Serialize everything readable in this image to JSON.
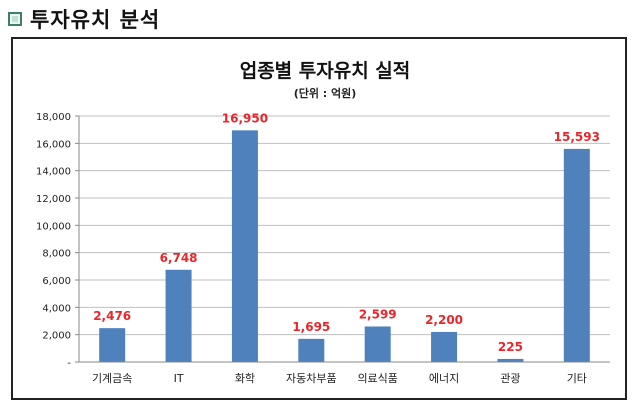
{
  "page_heading": "투자유치 분석",
  "chart_data": {
    "type": "bar",
    "title": "업종별 투자유치 실적",
    "subtitle": "(단위 : 억원)",
    "categories": [
      "기계금속",
      "IT",
      "화학",
      "자동차부품",
      "의료식품",
      "에너지",
      "관광",
      "기타"
    ],
    "values": [
      2476,
      6748,
      16950,
      1695,
      2599,
      2200,
      225,
      15593
    ],
    "value_labels": [
      "2,476",
      "6,748",
      "16,950",
      "1,695",
      "2,599",
      "2,200",
      "225",
      "15,593"
    ],
    "ylim": [
      0,
      18000
    ],
    "yticks": [
      0,
      2000,
      4000,
      6000,
      8000,
      10000,
      12000,
      14000,
      16000,
      18000
    ],
    "ytick_labels": [
      "-",
      "2,000",
      "4,000",
      "6,000",
      "8,000",
      "10,000",
      "12,000",
      "14,000",
      "16,000",
      "18,000"
    ],
    "bar_color": "#4f81bd",
    "label_color": "#e8262b",
    "grid": true,
    "legend": "none"
  }
}
